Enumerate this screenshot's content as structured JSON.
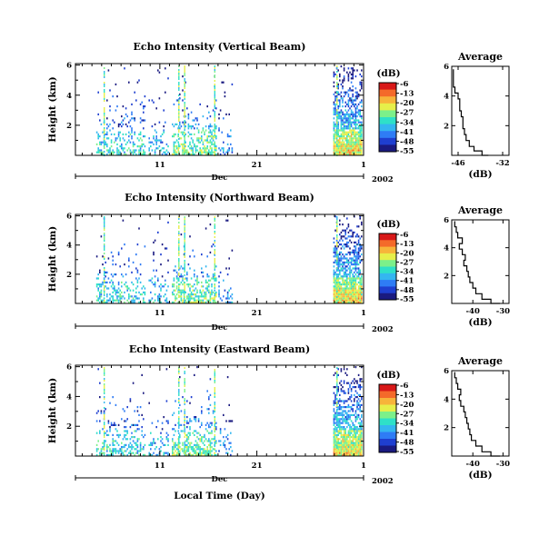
{
  "colors": {
    "scale": [
      "#1a1a80",
      "#1f3fd0",
      "#2f7cf5",
      "#34b6f0",
      "#2fe0c8",
      "#7cf08a",
      "#e6ef4a",
      "#f7b43a",
      "#f46a2a",
      "#d81818"
    ]
  },
  "chart_data": [
    {
      "type": "heatmap",
      "title": "Echo Intensity (Vertical Beam)",
      "ylabel": "Height (km)",
      "yticks": [
        "6",
        "4",
        "2"
      ],
      "xticks": [
        "11",
        "21",
        "1"
      ],
      "month": "Dec",
      "year": "2002",
      "colorbar": {
        "unit": "(dB)",
        "ticks": [
          "-6",
          "-13",
          "-20",
          "-27",
          "-34",
          "-41",
          "-48",
          "-55"
        ]
      },
      "profile": {
        "title": "Average",
        "xlabel": "(dB)",
        "xticks": [
          "-46",
          "-32"
        ],
        "xlim": [
          -48,
          -30
        ],
        "ylim": [
          0,
          6
        ],
        "yticks": [
          "6",
          "4",
          "2"
        ],
        "points": [
          [
            -36.5,
            0.0
          ],
          [
            -38.5,
            0.3
          ],
          [
            -41,
            0.6
          ],
          [
            -42.5,
            1.0
          ],
          [
            -43.5,
            1.4
          ],
          [
            -44,
            1.8
          ],
          [
            -44.5,
            2.2
          ],
          [
            -44.5,
            2.6
          ],
          [
            -45,
            3.0
          ],
          [
            -45.5,
            3.4
          ],
          [
            -45.5,
            3.8
          ],
          [
            -46,
            4.2
          ],
          [
            -47,
            4.6
          ],
          [
            -47.5,
            5.0
          ],
          [
            -47.5,
            5.4
          ],
          [
            -47.5,
            5.8
          ]
        ]
      }
    },
    {
      "type": "heatmap",
      "title": "Echo Intensity (Northward Beam)",
      "ylabel": "Height (km)",
      "yticks": [
        "6",
        "4",
        "2"
      ],
      "xticks": [
        "11",
        "21",
        "1"
      ],
      "month": "Dec",
      "year": "2002",
      "colorbar": {
        "unit": "(dB)",
        "ticks": [
          "-6",
          "-13",
          "-20",
          "-27",
          "-34",
          "-41",
          "-48",
          "-55"
        ]
      },
      "profile": {
        "title": "Average",
        "xlabel": "(dB)",
        "xticks": [
          "-40",
          "-30"
        ],
        "xlim": [
          -47,
          -28
        ],
        "ylim": [
          0,
          6
        ],
        "yticks": [
          "6",
          "4",
          "2"
        ],
        "points": [
          [
            -31,
            0.0
          ],
          [
            -34,
            0.3
          ],
          [
            -37,
            0.7
          ],
          [
            -39,
            1.1
          ],
          [
            -40,
            1.5
          ],
          [
            -41,
            1.9
          ],
          [
            -41.5,
            2.3
          ],
          [
            -42,
            2.7
          ],
          [
            -43,
            3.1
          ],
          [
            -42.5,
            3.5
          ],
          [
            -43.5,
            3.9
          ],
          [
            -44.5,
            4.3
          ],
          [
            -43.5,
            4.7
          ],
          [
            -45,
            5.1
          ],
          [
            -45.5,
            5.5
          ],
          [
            -46,
            5.9
          ]
        ]
      }
    },
    {
      "type": "heatmap",
      "title": "Echo Intensity (Eastward Beam)",
      "ylabel": "Height (km)",
      "xlabel": "Local Time (Day)",
      "yticks": [
        "6",
        "4",
        "2"
      ],
      "xticks": [
        "11",
        "21",
        "1"
      ],
      "month": "Dec",
      "year": "2002",
      "colorbar": {
        "unit": "(dB)",
        "ticks": [
          "-6",
          "-13",
          "-20",
          "-27",
          "-34",
          "-41",
          "-48",
          "-55"
        ]
      },
      "profile": {
        "title": "Average",
        "xlabel": "(dB)",
        "xticks": [
          "-40",
          "-30"
        ],
        "xlim": [
          -47,
          -28
        ],
        "ylim": [
          0,
          6
        ],
        "yticks": [
          "6",
          "4",
          "2"
        ],
        "points": [
          [
            -31,
            0.0
          ],
          [
            -34,
            0.3
          ],
          [
            -37,
            0.7
          ],
          [
            -39,
            1.1
          ],
          [
            -40.5,
            1.5
          ],
          [
            -41,
            1.9
          ],
          [
            -41.5,
            2.3
          ],
          [
            -42,
            2.7
          ],
          [
            -42.5,
            3.1
          ],
          [
            -43,
            3.5
          ],
          [
            -44,
            3.9
          ],
          [
            -44.5,
            4.3
          ],
          [
            -44,
            4.7
          ],
          [
            -45,
            5.1
          ],
          [
            -45.5,
            5.5
          ],
          [
            -46,
            5.9
          ]
        ]
      }
    }
  ]
}
